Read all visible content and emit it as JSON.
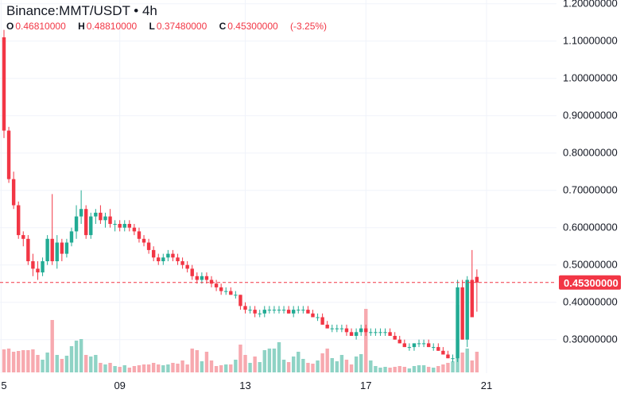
{
  "legend": {
    "title": "Binance:MMT/USDT • 4h",
    "open_label": "O",
    "open": "0.46810000",
    "high_label": "H",
    "high": "0.48810000",
    "low_label": "L",
    "low": "0.37480000",
    "close_label": "C",
    "close": "0.45300000",
    "change": "(-3.25%)"
  },
  "colors": {
    "up": "#22ab94",
    "down": "#f23645",
    "up_volume": "#8fd3c5",
    "down_volume": "#f7a9af",
    "price_line": "#f23645",
    "grid": "#f0f3fa",
    "axis_text": "#131722"
  },
  "chart_data": {
    "type": "candlestick",
    "title": "Binance:MMT/USDT • 4h",
    "ylim": [
      0.21,
      1.21
    ],
    "y_ticks": [
      "0.30000000",
      "0.40000000",
      "0.50000000",
      "0.60000000",
      "0.70000000",
      "0.80000000",
      "0.90000000",
      "1.00000000",
      "1.10000000",
      "1.20000000"
    ],
    "y_tick_values": [
      0.3,
      0.4,
      0.5,
      0.6,
      0.7,
      0.8,
      0.9,
      1.0,
      1.1,
      1.2
    ],
    "x_ticks": [
      {
        "label": "5",
        "index": -0.6
      },
      {
        "label": "09",
        "index": 24
      },
      {
        "label": "13",
        "index": 50
      },
      {
        "label": "17",
        "index": 75
      },
      {
        "label": "21",
        "index": 100
      }
    ],
    "last_price": 0.453,
    "last_price_label": "0.45300000",
    "candles": [
      [
        1.11,
        1.13,
        0.84,
        0.86,
        0.29
      ],
      [
        0.86,
        0.87,
        0.72,
        0.73,
        0.3
      ],
      [
        0.73,
        0.75,
        0.65,
        0.66,
        0.26
      ],
      [
        0.66,
        0.67,
        0.57,
        0.58,
        0.27
      ],
      [
        0.58,
        0.59,
        0.55,
        0.57,
        0.28
      ],
      [
        0.57,
        0.58,
        0.5,
        0.51,
        0.28
      ],
      [
        0.51,
        0.53,
        0.47,
        0.49,
        0.29
      ],
      [
        0.49,
        0.51,
        0.46,
        0.48,
        0.22
      ],
      [
        0.48,
        0.52,
        0.47,
        0.51,
        0.16
      ],
      [
        0.51,
        0.58,
        0.5,
        0.57,
        0.25
      ],
      [
        0.57,
        0.69,
        0.5,
        0.51,
        0.66
      ],
      [
        0.51,
        0.58,
        0.49,
        0.56,
        0.22
      ],
      [
        0.56,
        0.57,
        0.51,
        0.53,
        0.17
      ],
      [
        0.53,
        0.57,
        0.52,
        0.56,
        0.21
      ],
      [
        0.56,
        0.6,
        0.55,
        0.59,
        0.33
      ],
      [
        0.59,
        0.66,
        0.57,
        0.63,
        0.4
      ],
      [
        0.63,
        0.7,
        0.61,
        0.65,
        0.42
      ],
      [
        0.65,
        0.66,
        0.57,
        0.58,
        0.22
      ],
      [
        0.58,
        0.64,
        0.57,
        0.63,
        0.2
      ],
      [
        0.63,
        0.65,
        0.61,
        0.64,
        0.22
      ],
      [
        0.64,
        0.66,
        0.61,
        0.62,
        0.12
      ],
      [
        0.62,
        0.64,
        0.6,
        0.63,
        0.1
      ],
      [
        0.63,
        0.65,
        0.6,
        0.61,
        0.12
      ],
      [
        0.61,
        0.62,
        0.59,
        0.61,
        0.08
      ],
      [
        0.61,
        0.62,
        0.59,
        0.6,
        0.07
      ],
      [
        0.6,
        0.62,
        0.59,
        0.61,
        0.09
      ],
      [
        0.61,
        0.62,
        0.59,
        0.6,
        0.06
      ],
      [
        0.6,
        0.61,
        0.58,
        0.59,
        0.08
      ],
      [
        0.59,
        0.6,
        0.56,
        0.57,
        0.09
      ],
      [
        0.57,
        0.58,
        0.55,
        0.56,
        0.1
      ],
      [
        0.56,
        0.57,
        0.53,
        0.54,
        0.1
      ],
      [
        0.54,
        0.55,
        0.51,
        0.52,
        0.12
      ],
      [
        0.52,
        0.53,
        0.5,
        0.51,
        0.1
      ],
      [
        0.51,
        0.53,
        0.5,
        0.52,
        0.09
      ],
      [
        0.52,
        0.54,
        0.51,
        0.53,
        0.1
      ],
      [
        0.53,
        0.54,
        0.51,
        0.52,
        0.12
      ],
      [
        0.52,
        0.53,
        0.5,
        0.51,
        0.11
      ],
      [
        0.51,
        0.52,
        0.49,
        0.5,
        0.15
      ],
      [
        0.5,
        0.51,
        0.48,
        0.49,
        0.1
      ],
      [
        0.49,
        0.5,
        0.46,
        0.47,
        0.3
      ],
      [
        0.47,
        0.48,
        0.45,
        0.46,
        0.28
      ],
      [
        0.46,
        0.48,
        0.45,
        0.47,
        0.14
      ],
      [
        0.47,
        0.48,
        0.45,
        0.46,
        0.26
      ],
      [
        0.46,
        0.47,
        0.44,
        0.45,
        0.15
      ],
      [
        0.45,
        0.46,
        0.43,
        0.44,
        0.08
      ],
      [
        0.44,
        0.45,
        0.42,
        0.43,
        0.09
      ],
      [
        0.43,
        0.44,
        0.42,
        0.43,
        0.1
      ],
      [
        0.43,
        0.44,
        0.42,
        0.42,
        0.1
      ],
      [
        0.42,
        0.43,
        0.41,
        0.42,
        0.16
      ],
      [
        0.42,
        0.42,
        0.38,
        0.39,
        0.35
      ],
      [
        0.39,
        0.4,
        0.37,
        0.38,
        0.22
      ],
      [
        0.38,
        0.39,
        0.37,
        0.38,
        0.12
      ],
      [
        0.38,
        0.39,
        0.36,
        0.37,
        0.2
      ],
      [
        0.37,
        0.38,
        0.36,
        0.37,
        0.13
      ],
      [
        0.37,
        0.39,
        0.36,
        0.38,
        0.28
      ],
      [
        0.38,
        0.39,
        0.37,
        0.38,
        0.3
      ],
      [
        0.38,
        0.39,
        0.37,
        0.38,
        0.3
      ],
      [
        0.38,
        0.39,
        0.37,
        0.38,
        0.38
      ],
      [
        0.38,
        0.39,
        0.37,
        0.38,
        0.16
      ],
      [
        0.38,
        0.39,
        0.37,
        0.37,
        0.13
      ],
      [
        0.37,
        0.39,
        0.36,
        0.38,
        0.2
      ],
      [
        0.38,
        0.39,
        0.37,
        0.38,
        0.26
      ],
      [
        0.38,
        0.39,
        0.37,
        0.38,
        0.17
      ],
      [
        0.38,
        0.39,
        0.37,
        0.37,
        0.12
      ],
      [
        0.37,
        0.38,
        0.36,
        0.36,
        0.11
      ],
      [
        0.36,
        0.37,
        0.35,
        0.36,
        0.15
      ],
      [
        0.36,
        0.37,
        0.34,
        0.34,
        0.24
      ],
      [
        0.34,
        0.35,
        0.33,
        0.33,
        0.3
      ],
      [
        0.33,
        0.34,
        0.32,
        0.33,
        0.18
      ],
      [
        0.33,
        0.34,
        0.32,
        0.33,
        0.14
      ],
      [
        0.33,
        0.34,
        0.32,
        0.33,
        0.22
      ],
      [
        0.33,
        0.34,
        0.31,
        0.32,
        0.16
      ],
      [
        0.32,
        0.33,
        0.31,
        0.31,
        0.1
      ],
      [
        0.31,
        0.33,
        0.3,
        0.32,
        0.2
      ],
      [
        0.32,
        0.34,
        0.31,
        0.33,
        0.23
      ],
      [
        0.33,
        0.34,
        0.31,
        0.32,
        0.8
      ],
      [
        0.32,
        0.33,
        0.31,
        0.32,
        0.15
      ],
      [
        0.32,
        0.33,
        0.31,
        0.32,
        0.08
      ],
      [
        0.32,
        0.33,
        0.31,
        0.32,
        0.06
      ],
      [
        0.32,
        0.33,
        0.31,
        0.32,
        0.07
      ],
      [
        0.32,
        0.33,
        0.31,
        0.31,
        0.06
      ],
      [
        0.31,
        0.32,
        0.3,
        0.3,
        0.07
      ],
      [
        0.3,
        0.31,
        0.29,
        0.29,
        0.08
      ],
      [
        0.29,
        0.3,
        0.28,
        0.28,
        0.07
      ],
      [
        0.28,
        0.29,
        0.27,
        0.28,
        0.05
      ],
      [
        0.28,
        0.29,
        0.27,
        0.29,
        0.08
      ],
      [
        0.29,
        0.3,
        0.28,
        0.29,
        0.09
      ],
      [
        0.29,
        0.3,
        0.28,
        0.29,
        0.09
      ],
      [
        0.29,
        0.3,
        0.28,
        0.28,
        0.07
      ],
      [
        0.28,
        0.29,
        0.27,
        0.28,
        0.06
      ],
      [
        0.28,
        0.29,
        0.27,
        0.27,
        0.08
      ],
      [
        0.27,
        0.28,
        0.26,
        0.26,
        0.1
      ],
      [
        0.26,
        0.27,
        0.25,
        0.25,
        0.12
      ],
      [
        0.25,
        0.26,
        0.24,
        0.25,
        0.14
      ],
      [
        0.25,
        0.46,
        0.24,
        0.44,
        0.85
      ],
      [
        0.44,
        0.46,
        0.3,
        0.3,
        0.25
      ],
      [
        0.3,
        0.47,
        0.28,
        0.46,
        0.3
      ],
      [
        0.46,
        0.54,
        0.36,
        0.36,
        0.15
      ],
      [
        0.4681,
        0.4881,
        0.3748,
        0.453,
        0.26
      ]
    ]
  }
}
